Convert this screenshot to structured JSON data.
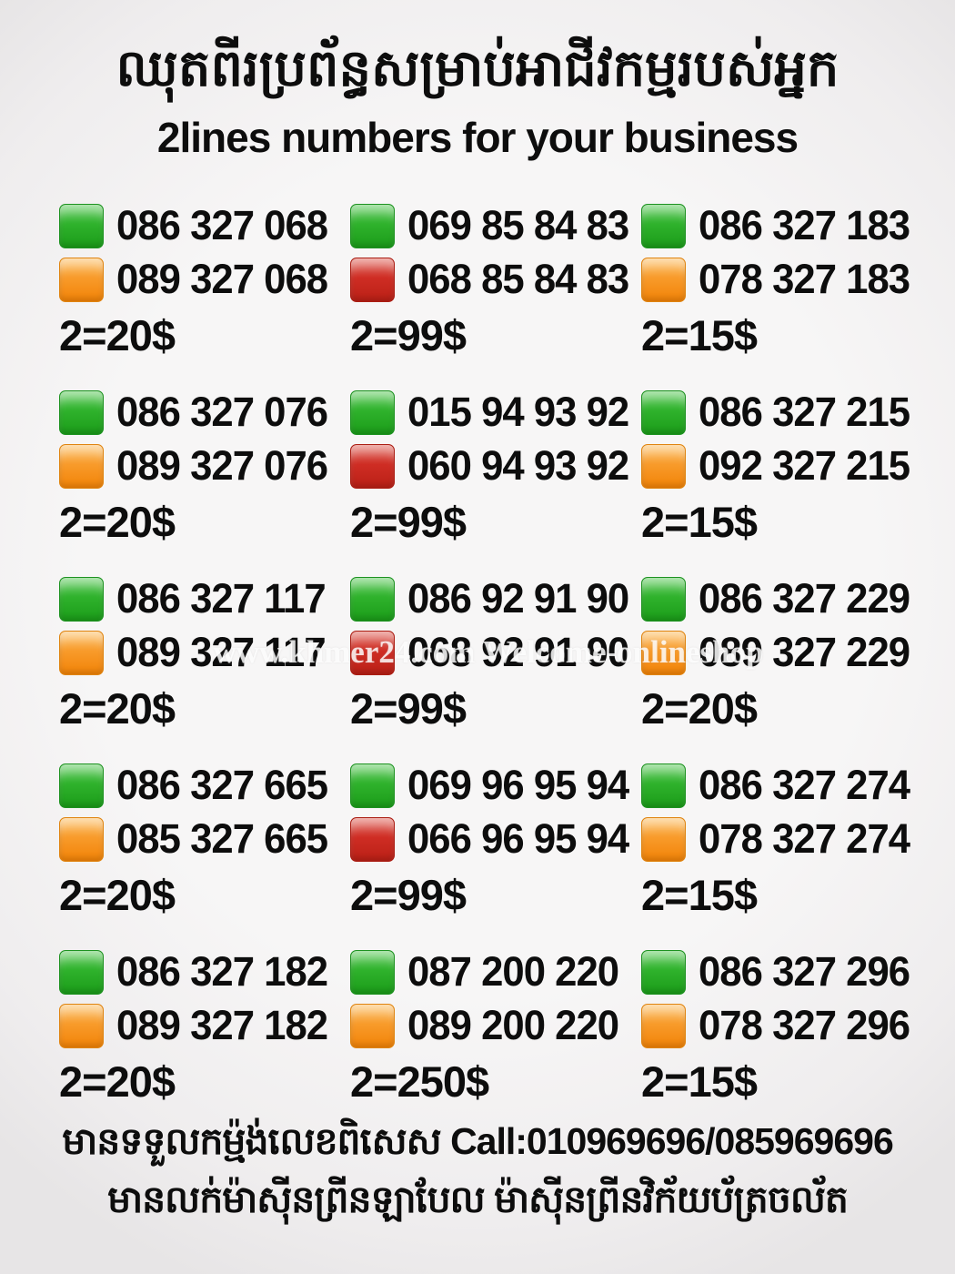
{
  "header": {
    "title_khmer": "ឈុតពីរប្រព័ន្ធសម្រាប់អាជីវកម្មរបស់អ្នក",
    "subtitle": "2lines numbers for your business"
  },
  "colors": {
    "green": "#2fb22c",
    "orange": "#f89b2b",
    "red": "#cf2d24"
  },
  "watermark": "www.khmer24.com Welcome-onlineshop",
  "listings": [
    {
      "lines": [
        {
          "color": "green",
          "number": "086 327 068"
        },
        {
          "color": "orange",
          "number": "089 327 068"
        }
      ],
      "price": "2=20$"
    },
    {
      "lines": [
        {
          "color": "green",
          "number": "069 85 84 83"
        },
        {
          "color": "red",
          "number": "068 85 84 83"
        }
      ],
      "price": "2=99$"
    },
    {
      "lines": [
        {
          "color": "green",
          "number": "086 327 183"
        },
        {
          "color": "orange",
          "number": "078 327 183"
        }
      ],
      "price": "2=15$"
    },
    {
      "lines": [
        {
          "color": "green",
          "number": "086 327 076"
        },
        {
          "color": "orange",
          "number": "089 327 076"
        }
      ],
      "price": "2=20$"
    },
    {
      "lines": [
        {
          "color": "green",
          "number": "015 94 93 92"
        },
        {
          "color": "red",
          "number": "060 94 93 92"
        }
      ],
      "price": "2=99$"
    },
    {
      "lines": [
        {
          "color": "green",
          "number": "086 327 215"
        },
        {
          "color": "orange",
          "number": "092 327 215"
        }
      ],
      "price": "2=15$"
    },
    {
      "lines": [
        {
          "color": "green",
          "number": "086 327 117"
        },
        {
          "color": "orange",
          "number": "089 327 117"
        }
      ],
      "price": "2=20$"
    },
    {
      "lines": [
        {
          "color": "green",
          "number": "086 92 91 90"
        },
        {
          "color": "red",
          "number": "068 92 91 90"
        }
      ],
      "price": "2=99$"
    },
    {
      "lines": [
        {
          "color": "green",
          "number": "086 327 229"
        },
        {
          "color": "orange",
          "number": "089 327 229"
        }
      ],
      "price": "2=20$"
    },
    {
      "lines": [
        {
          "color": "green",
          "number": "086 327 665"
        },
        {
          "color": "orange",
          "number": "085 327 665"
        }
      ],
      "price": "2=20$"
    },
    {
      "lines": [
        {
          "color": "green",
          "number": "069 96 95 94"
        },
        {
          "color": "red",
          "number": "066 96 95 94"
        }
      ],
      "price": "2=99$"
    },
    {
      "lines": [
        {
          "color": "green",
          "number": "086 327 274"
        },
        {
          "color": "orange",
          "number": "078 327 274"
        }
      ],
      "price": "2=15$"
    },
    {
      "lines": [
        {
          "color": "green",
          "number": "086 327 182"
        },
        {
          "color": "orange",
          "number": "089 327 182"
        }
      ],
      "price": "2=20$"
    },
    {
      "lines": [
        {
          "color": "green",
          "number": "087 200 220"
        },
        {
          "color": "orange",
          "number": "089 200 220"
        }
      ],
      "price": "2=250$"
    },
    {
      "lines": [
        {
          "color": "green",
          "number": "086 327 296"
        },
        {
          "color": "orange",
          "number": "078 327 296"
        }
      ],
      "price": "2=15$"
    }
  ],
  "footer": {
    "line1_khmer": "មានទទួលកម្ម៉ង់លេខពិសេស",
    "line1_call": "Call:010969696/085969696",
    "line2_khmer": "មានលក់ម៉ាស៊ីនព្រីនឡាបែល ម៉ាស៊ីនព្រីនវិក័យប័ត្រចល័ត"
  }
}
